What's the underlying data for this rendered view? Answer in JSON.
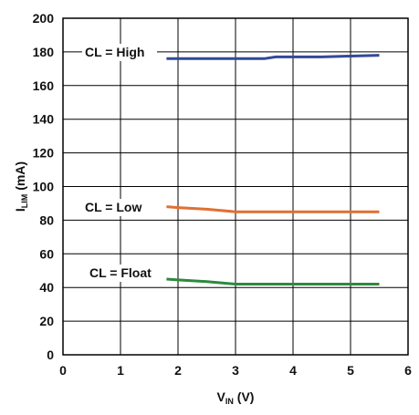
{
  "chart_data": {
    "type": "line",
    "title": "",
    "xlabel": {
      "main": "V",
      "sub": "IN",
      "unit": " (V)"
    },
    "ylabel": {
      "main": "I",
      "sub": "LIM",
      "unit": " (mA)"
    },
    "xlim": [
      0,
      6
    ],
    "ylim": [
      0,
      200
    ],
    "xticks": [
      0,
      1,
      2,
      3,
      4,
      5,
      6
    ],
    "yticks": [
      0,
      20,
      40,
      60,
      80,
      100,
      120,
      140,
      160,
      180,
      200
    ],
    "grid": true,
    "legend": "none",
    "series": [
      {
        "name": "CL = High",
        "color": "#34489a",
        "x": [
          1.8,
          2.5,
          3.0,
          3.5,
          3.7,
          4.0,
          4.5,
          5.0,
          5.5
        ],
        "y": [
          176,
          176,
          176,
          176,
          177,
          177,
          177,
          177.5,
          178
        ]
      },
      {
        "name": "CL = Low",
        "color": "#e07032",
        "x": [
          1.8,
          2.0,
          2.5,
          3.0,
          3.5,
          4.0,
          4.5,
          5.0,
          5.5
        ],
        "y": [
          88,
          87.5,
          86.5,
          85,
          85,
          85,
          85,
          85,
          85
        ]
      },
      {
        "name": "CL = Float",
        "color": "#2b8a3e",
        "x": [
          1.8,
          2.0,
          2.5,
          3.0,
          3.5,
          4.0,
          4.5,
          5.0,
          5.5
        ],
        "y": [
          45,
          44.5,
          43.5,
          42,
          42,
          42,
          42,
          42,
          42
        ]
      }
    ],
    "annotations": [
      {
        "text": "CL = High",
        "series": 0
      },
      {
        "text": "CL = Low",
        "series": 1
      },
      {
        "text": "CL = Float",
        "series": 2
      }
    ]
  }
}
